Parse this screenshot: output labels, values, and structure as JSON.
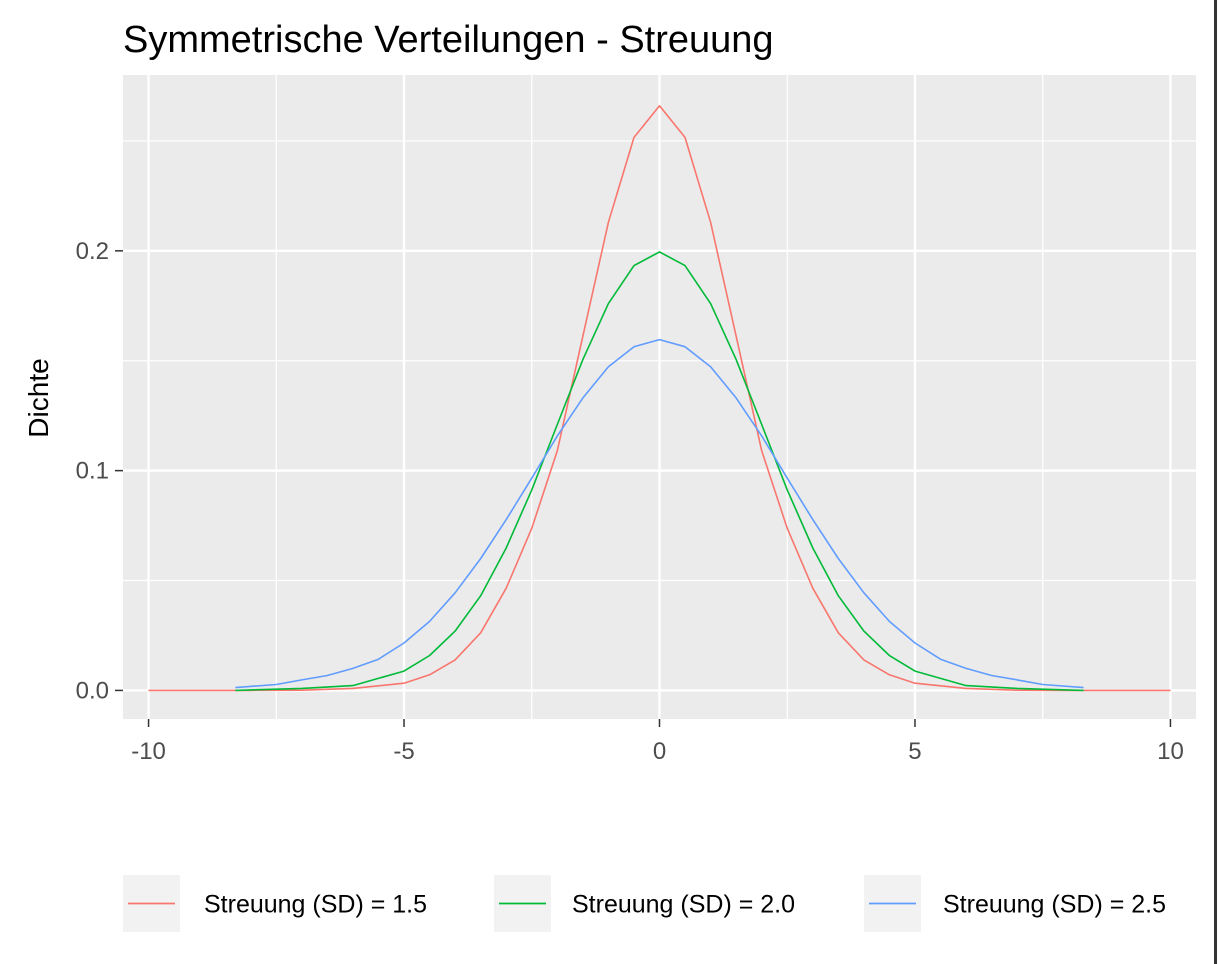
{
  "chart_data": {
    "type": "line",
    "title": "Symmetrische Verteilungen - Streuung",
    "xlabel": "",
    "ylabel": "Dichte",
    "xlim": [
      -10.5,
      10.5
    ],
    "ylim": [
      -0.013,
      0.28
    ],
    "x_ticks": [
      -10,
      -5,
      0,
      5,
      10
    ],
    "x_tick_labels": [
      "-10",
      "-5",
      "0",
      "5",
      "10"
    ],
    "x_minor_ticks": [
      -7.5,
      -2.5,
      2.5,
      7.5
    ],
    "y_ticks": [
      0.0,
      0.1,
      0.2
    ],
    "y_tick_labels": [
      "0.0",
      "0.1",
      "0.2"
    ],
    "y_minor_ticks": [
      0.05,
      0.15,
      0.25
    ],
    "grid": true,
    "legend_position": "bottom",
    "colors": {
      "panel_background": "#EBEBEB",
      "grid": "#FFFFFF",
      "legend_key_background": "#F2F2F2",
      "text": "#000000",
      "tick_text": "#4D4D4D"
    },
    "series": [
      {
        "name": "Streuung (SD) = 1.5",
        "color": "#F8766D",
        "x": [
          -10,
          -9,
          -8,
          -7,
          -6,
          -5,
          -4.5,
          -4,
          -3.5,
          -3,
          -2.5,
          -2,
          -1.5,
          -1,
          -0.5,
          0,
          0.5,
          1,
          1.5,
          2,
          2.5,
          3,
          3.5,
          4,
          4.5,
          5,
          6,
          7,
          8,
          9,
          10
        ],
        "y": [
          0.0,
          0.0,
          0.0,
          0.0001,
          0.0009,
          0.0033,
          0.0071,
          0.0139,
          0.0262,
          0.0465,
          0.0738,
          0.109,
          0.1613,
          0.213,
          0.2516,
          0.266,
          0.2516,
          0.213,
          0.1613,
          0.109,
          0.0738,
          0.0465,
          0.0262,
          0.0139,
          0.0071,
          0.0033,
          0.0009,
          0.0001,
          0.0,
          0.0,
          0.0
        ]
      },
      {
        "name": "Streuung (SD) = 2.0",
        "color": "#00BA38",
        "x": [
          -8.3,
          -7,
          -6,
          -5,
          -4.5,
          -4,
          -3.5,
          -3,
          -2.5,
          -2,
          -1.5,
          -1,
          -0.5,
          0,
          0.5,
          1,
          1.5,
          2,
          2.5,
          3,
          3.5,
          4,
          4.5,
          5,
          6,
          7,
          8.3
        ],
        "y": [
          0.0,
          0.0009,
          0.0022,
          0.0088,
          0.0159,
          0.027,
          0.0431,
          0.0648,
          0.0913,
          0.121,
          0.1506,
          0.176,
          0.1933,
          0.1995,
          0.1933,
          0.176,
          0.1506,
          0.121,
          0.0913,
          0.0648,
          0.0431,
          0.027,
          0.0159,
          0.0088,
          0.0022,
          0.0009,
          0.0
        ]
      },
      {
        "name": "Streuung (SD) = 2.5",
        "color": "#619CFF",
        "x": [
          -8.3,
          -7.5,
          -7,
          -6.5,
          -6,
          -5.5,
          -5,
          -4.5,
          -4,
          -3.5,
          -3,
          -2.5,
          -2,
          -1.5,
          -1,
          -0.5,
          0,
          0.5,
          1,
          1.5,
          2,
          2.5,
          3,
          3.5,
          4,
          4.5,
          5,
          5.5,
          6,
          6.5,
          7,
          7.5,
          8.3
        ],
        "y": [
          0.0013,
          0.0027,
          0.0048,
          0.0068,
          0.01,
          0.0142,
          0.0216,
          0.0314,
          0.0444,
          0.06,
          0.0777,
          0.0966,
          0.1158,
          0.1331,
          0.1473,
          0.1564,
          0.1596,
          0.1564,
          0.1473,
          0.1331,
          0.1158,
          0.0966,
          0.0777,
          0.06,
          0.0444,
          0.0314,
          0.0216,
          0.0142,
          0.01,
          0.0068,
          0.0048,
          0.0027,
          0.0013
        ]
      }
    ]
  }
}
